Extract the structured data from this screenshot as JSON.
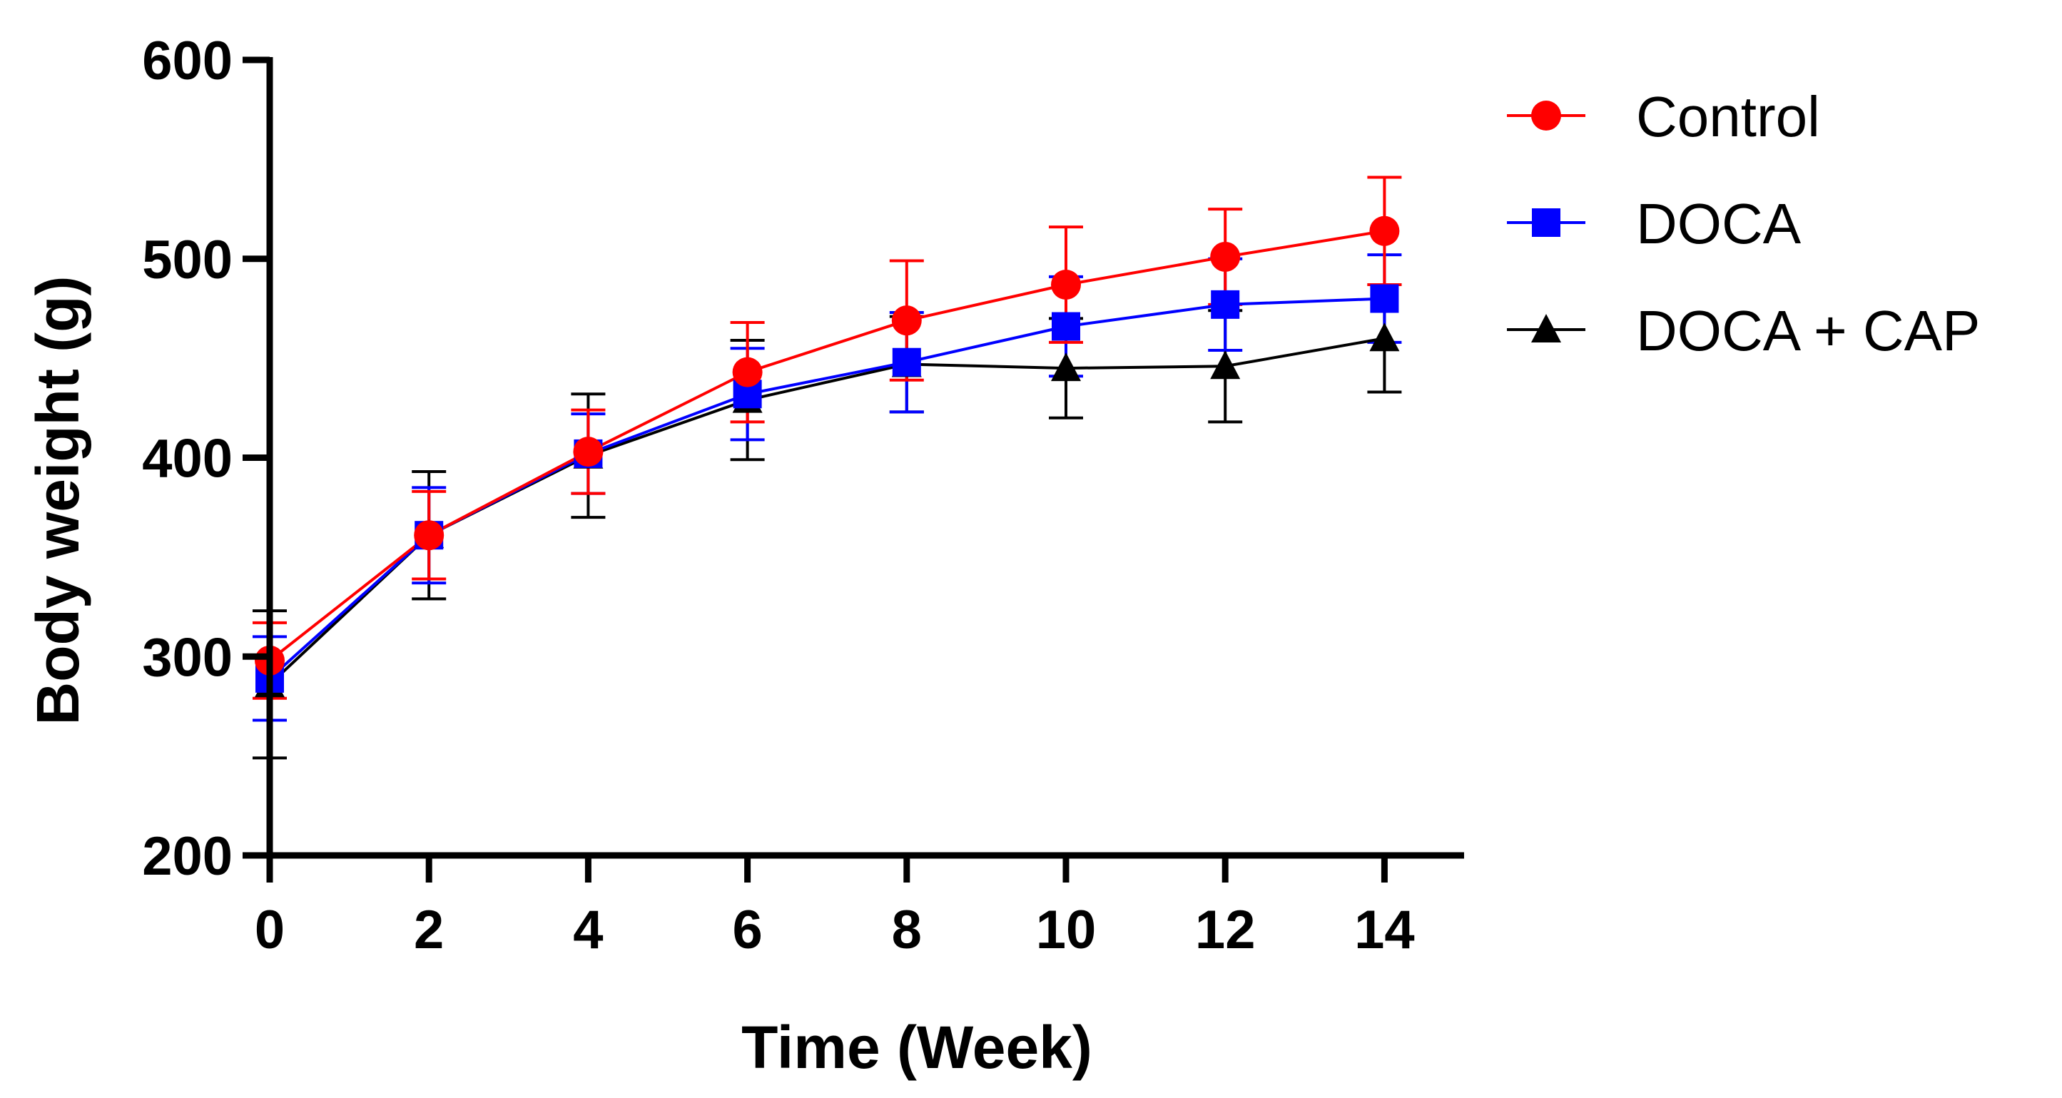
{
  "chart_data": {
    "type": "line",
    "title": "",
    "xlabel": "Time (Week)",
    "ylabel": "Body weight (g)",
    "x": [
      0,
      2,
      4,
      6,
      8,
      10,
      12,
      14
    ],
    "xticks": [
      "0",
      "2",
      "4",
      "6",
      "8",
      "10",
      "12",
      "14"
    ],
    "yticks": [
      "200",
      "300",
      "400",
      "500",
      "600"
    ],
    "xlim": [
      0,
      15
    ],
    "ylim": [
      200,
      600
    ],
    "grid": false,
    "legend_position": "top-right",
    "series": [
      {
        "name": "Control",
        "color": "#ff0000",
        "marker": "circle",
        "values": [
          298,
          361,
          403,
          443,
          469,
          487,
          501,
          514
        ],
        "error_bars": [
          19,
          22,
          21,
          25,
          30,
          29,
          24,
          27
        ]
      },
      {
        "name": "DOCA",
        "color": "#0000ff",
        "marker": "square",
        "values": [
          289,
          361,
          402,
          432,
          448,
          466,
          477,
          480
        ],
        "error_bars": [
          21,
          24,
          20,
          23,
          25,
          25,
          23,
          22
        ]
      },
      {
        "name": "DOCA + CAP",
        "color": "#000000",
        "marker": "triangle",
        "values": [
          286,
          361,
          401,
          429,
          447,
          445,
          446,
          460
        ],
        "error_bars": [
          37,
          32,
          31,
          30,
          24,
          25,
          28,
          27
        ]
      }
    ]
  }
}
